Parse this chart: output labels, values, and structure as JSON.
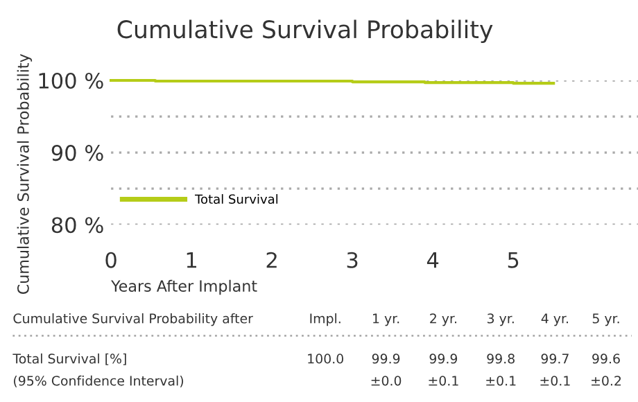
{
  "chart_data": {
    "type": "step",
    "title": "Cumulative Survival Probability",
    "xlabel": "Years After Implant",
    "ylabel": "Cumulative Survival Probability",
    "series": [
      {
        "name": "Total Survival",
        "color": "#b5cc18",
        "x": [
          0,
          0.55,
          3.0,
          3.9,
          5.0,
          5.5
        ],
        "values": [
          100,
          99.9,
          99.8,
          99.7,
          99.6,
          99.6
        ]
      }
    ],
    "xlim": [
      0,
      6.55
    ],
    "xticks": [
      0,
      1,
      2,
      3,
      4,
      5
    ],
    "ylim": [
      80,
      100
    ],
    "yticks": [
      {
        "value": 80,
        "label": "80 %"
      },
      {
        "value": 85,
        "label": null
      },
      {
        "value": 90,
        "label": "90 %"
      },
      {
        "value": 95,
        "label": null
      },
      {
        "value": 100,
        "label": "100 %"
      }
    ],
    "grid": "y",
    "legend": "bottom left",
    "annotations": [
      "Cumulative Survival Probability after",
      "Impl.",
      "1 yr.",
      "2 yr.",
      "3 yr.",
      "4 yr.",
      "5 yr.",
      "Total Survival [%]",
      "100.0",
      "99.9",
      "99.9",
      "99.8",
      "99.7",
      "99.6",
      "(95% Confidence Interval)",
      "±0.0",
      "±0.1",
      "±0.1",
      "±0.1",
      "±0.2"
    ]
  }
}
